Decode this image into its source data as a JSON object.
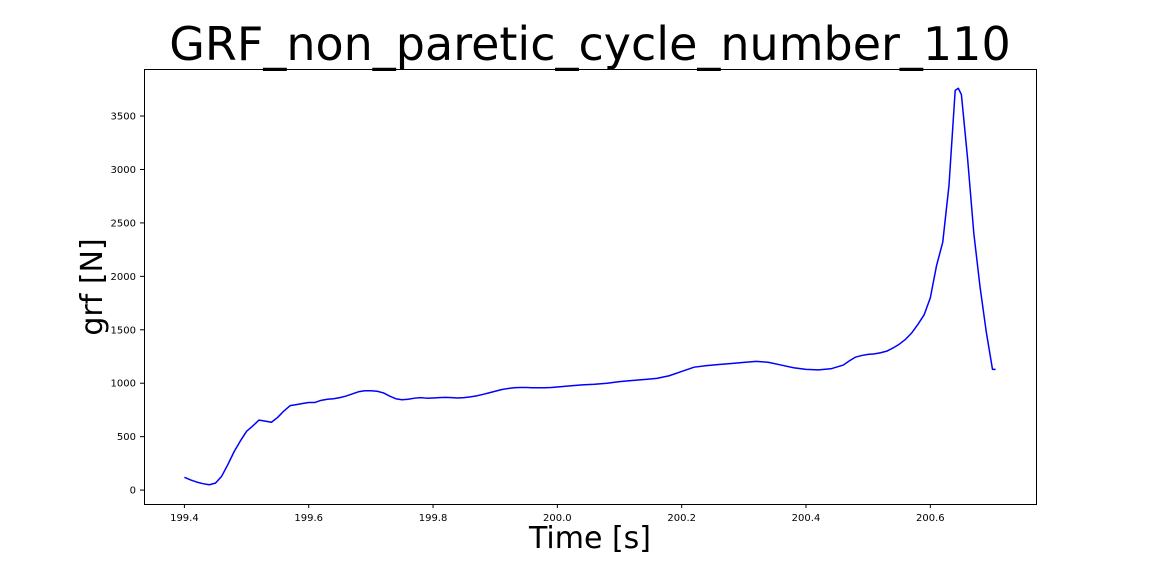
{
  "chart_data": {
    "type": "line",
    "title": "GRF_non_paretic_cycle_number_110",
    "xlabel": "Time [s]",
    "ylabel": "grf [N]",
    "xlim": [
      199.335,
      200.77
    ],
    "ylim": [
      -130,
      3940
    ],
    "xticks": [
      199.4,
      199.6,
      199.8,
      200.0,
      200.2,
      200.4,
      200.6
    ],
    "xtick_labels": [
      "199.4",
      "199.6",
      "199.8",
      "200.0",
      "200.2",
      "200.4",
      "200.6"
    ],
    "yticks": [
      0,
      500,
      1000,
      1500,
      2000,
      2500,
      3000,
      3500
    ],
    "ytick_labels": [
      "0",
      "500",
      "1000",
      "1500",
      "2000",
      "2500",
      "3000",
      "3500"
    ],
    "grid": false,
    "series": [
      {
        "color": "#0000ff",
        "x": [
          199.4,
          199.41,
          199.42,
          199.43,
          199.44,
          199.45,
          199.46,
          199.47,
          199.48,
          199.49,
          199.5,
          199.51,
          199.52,
          199.53,
          199.54,
          199.55,
          199.56,
          199.57,
          199.58,
          199.59,
          199.6,
          199.61,
          199.62,
          199.63,
          199.64,
          199.65,
          199.66,
          199.67,
          199.68,
          199.69,
          199.7,
          199.71,
          199.72,
          199.73,
          199.74,
          199.75,
          199.76,
          199.77,
          199.78,
          199.79,
          199.8,
          199.81,
          199.82,
          199.83,
          199.84,
          199.85,
          199.86,
          199.87,
          199.88,
          199.89,
          199.9,
          199.91,
          199.92,
          199.93,
          199.94,
          199.95,
          199.96,
          199.97,
          199.98,
          199.99,
          200.0,
          200.02,
          200.04,
          200.06,
          200.08,
          200.1,
          200.12,
          200.14,
          200.16,
          200.18,
          200.2,
          200.22,
          200.24,
          200.26,
          200.28,
          200.3,
          200.32,
          200.34,
          200.36,
          200.38,
          200.4,
          200.42,
          200.44,
          200.46,
          200.47,
          200.48,
          200.49,
          200.5,
          200.51,
          200.52,
          200.53,
          200.54,
          200.55,
          200.56,
          200.57,
          200.58,
          200.59,
          200.6,
          200.61,
          200.62,
          200.63,
          200.64,
          200.645,
          200.65,
          200.66,
          200.67,
          200.68,
          200.69,
          200.7,
          200.705
        ],
        "y": [
          120,
          95,
          75,
          60,
          50,
          65,
          130,
          240,
          360,
          460,
          550,
          600,
          655,
          645,
          635,
          680,
          740,
          790,
          800,
          810,
          820,
          820,
          840,
          850,
          855,
          865,
          880,
          900,
          920,
          930,
          930,
          925,
          910,
          880,
          855,
          845,
          850,
          860,
          865,
          860,
          862,
          865,
          868,
          865,
          862,
          865,
          872,
          882,
          895,
          910,
          925,
          940,
          950,
          958,
          960,
          960,
          958,
          958,
          958,
          960,
          965,
          975,
          985,
          990,
          1000,
          1015,
          1025,
          1035,
          1045,
          1070,
          1110,
          1150,
          1165,
          1175,
          1185,
          1195,
          1205,
          1195,
          1170,
          1145,
          1130,
          1125,
          1135,
          1170,
          1210,
          1245,
          1260,
          1270,
          1275,
          1285,
          1300,
          1330,
          1365,
          1410,
          1470,
          1550,
          1640,
          1800,
          2100,
          2320,
          2850,
          3740,
          3760,
          3700,
          3100,
          2400,
          1900,
          1480,
          1130,
          1130
        ]
      }
    ]
  }
}
